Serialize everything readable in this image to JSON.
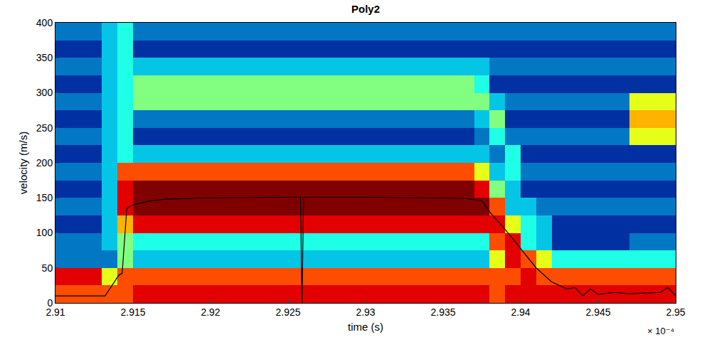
{
  "chart_data": {
    "type": "heatmap",
    "title": "Poly2",
    "x_label": "time (s)",
    "y_label": "velocity (m/s)",
    "annotations": [
      "× 10⁻⁴"
    ],
    "xlim": [
      2.91,
      2.95
    ],
    "xticks": [
      2.91,
      2.915,
      2.92,
      2.925,
      2.93,
      2.935,
      2.94,
      2.945,
      2.95
    ],
    "ylim": [
      0,
      400
    ],
    "yticks": [
      0,
      50,
      100,
      150,
      200,
      250,
      300,
      350,
      400
    ],
    "color_range": [
      0,
      10
    ],
    "x": [
      2.9105,
      2.9115,
      2.9125,
      2.9135,
      2.9145,
      2.9155,
      2.9165,
      2.9175,
      2.9185,
      2.9195,
      2.9205,
      2.9215,
      2.9225,
      2.9235,
      2.9245,
      2.9255,
      2.9265,
      2.9275,
      2.9285,
      2.9295,
      2.9305,
      2.9315,
      2.9325,
      2.9335,
      2.9345,
      2.9355,
      2.9365,
      2.9375,
      2.9385,
      2.9395,
      2.9405,
      2.9415,
      2.9425,
      2.9435,
      2.9445,
      2.9455,
      2.9465,
      2.9475,
      2.9485,
      2.9495
    ],
    "y": [
      12.5,
      37.5,
      62.5,
      87.5,
      112.5,
      137.5,
      162.5,
      187.5,
      212.5,
      237.5,
      262.5,
      287.5,
      312.5,
      337.5,
      362.5,
      387.5
    ],
    "z": [
      [
        8,
        8,
        8,
        8,
        8,
        9,
        9,
        9,
        9,
        9,
        9,
        9,
        9,
        9,
        9,
        9,
        9,
        9,
        9,
        9,
        9,
        9,
        9,
        9,
        9,
        9,
        9,
        9,
        8,
        9,
        9,
        9,
        9,
        9,
        9,
        9,
        9,
        9,
        9,
        9
      ],
      [
        9,
        9,
        9,
        6,
        8,
        8,
        8,
        8,
        8,
        8,
        8,
        8,
        8,
        8,
        8,
        8,
        8,
        8,
        8,
        8,
        8,
        8,
        8,
        8,
        8,
        8,
        8,
        8,
        8,
        8,
        9,
        8,
        8,
        8,
        8,
        8,
        8,
        8,
        8,
        8
      ],
      [
        2,
        2,
        2,
        2,
        5,
        3,
        3,
        3,
        3,
        3,
        3,
        3,
        3,
        3,
        3,
        3,
        3,
        3,
        3,
        3,
        3,
        3,
        3,
        3,
        3,
        3,
        3,
        3,
        6,
        9,
        8,
        6,
        4,
        4,
        4,
        4,
        4,
        4,
        4,
        4
      ],
      [
        2,
        2,
        2,
        3,
        5,
        4,
        4,
        4,
        4,
        4,
        4,
        4,
        4,
        4,
        4,
        4,
        4,
        4,
        4,
        4,
        4,
        4,
        4,
        4,
        4,
        4,
        4,
        4,
        8,
        9,
        4,
        3,
        1,
        1,
        1,
        1,
        1,
        2,
        2,
        2
      ],
      [
        1,
        1,
        1,
        3,
        7,
        9,
        9,
        9,
        9,
        9,
        9,
        9,
        9,
        9,
        9,
        9,
        9,
        9,
        9,
        9,
        9,
        9,
        9,
        9,
        9,
        9,
        9,
        9,
        9,
        6,
        4,
        3,
        1,
        1,
        1,
        1,
        1,
        1,
        1,
        1
      ],
      [
        2,
        2,
        2,
        3,
        9,
        10,
        10,
        10,
        10,
        10,
        10,
        10,
        10,
        10,
        10,
        10,
        10,
        10,
        10,
        10,
        10,
        10,
        10,
        10,
        10,
        10,
        10,
        10,
        8,
        3,
        3,
        2,
        2,
        2,
        2,
        2,
        2,
        2,
        2,
        2
      ],
      [
        1,
        1,
        1,
        3,
        9,
        10,
        10,
        10,
        10,
        10,
        10,
        10,
        10,
        10,
        10,
        10,
        10,
        10,
        10,
        10,
        10,
        10,
        10,
        10,
        10,
        10,
        10,
        9,
        5,
        3,
        1,
        1,
        1,
        1,
        1,
        1,
        1,
        1,
        1,
        1
      ],
      [
        2,
        2,
        2,
        3,
        8,
        8,
        8,
        8,
        8,
        8,
        8,
        8,
        8,
        8,
        8,
        8,
        8,
        8,
        8,
        8,
        8,
        8,
        8,
        8,
        8,
        8,
        8,
        6,
        3,
        4,
        2,
        2,
        2,
        2,
        2,
        2,
        2,
        2,
        2,
        2
      ],
      [
        1,
        1,
        1,
        3,
        4,
        3,
        3,
        3,
        3,
        3,
        3,
        3,
        3,
        3,
        3,
        3,
        3,
        3,
        3,
        3,
        3,
        3,
        3,
        3,
        3,
        3,
        3,
        3,
        2,
        4,
        1,
        1,
        1,
        1,
        1,
        1,
        1,
        1,
        1,
        1
      ],
      [
        2,
        2,
        2,
        3,
        4,
        1,
        1,
        1,
        1,
        1,
        1,
        1,
        1,
        1,
        1,
        1,
        1,
        1,
        1,
        1,
        1,
        1,
        1,
        1,
        1,
        1,
        1,
        2,
        4,
        2,
        2,
        2,
        2,
        2,
        2,
        2,
        2,
        6,
        6,
        6
      ],
      [
        1,
        1,
        1,
        3,
        4,
        2,
        2,
        2,
        2,
        2,
        2,
        2,
        2,
        2,
        2,
        2,
        2,
        2,
        2,
        2,
        2,
        2,
        2,
        2,
        2,
        2,
        2,
        3,
        5,
        1,
        1,
        1,
        1,
        1,
        1,
        1,
        1,
        7,
        7,
        7
      ],
      [
        2,
        2,
        2,
        3,
        4,
        5,
        5,
        5,
        5,
        5,
        5,
        5,
        5,
        5,
        5,
        5,
        5,
        5,
        5,
        5,
        5,
        5,
        5,
        5,
        5,
        5,
        5,
        5,
        3,
        2,
        2,
        2,
        2,
        2,
        2,
        2,
        2,
        6,
        6,
        6
      ],
      [
        1,
        1,
        1,
        3,
        4,
        5,
        5,
        5,
        5,
        5,
        5,
        5,
        5,
        5,
        5,
        5,
        5,
        5,
        5,
        5,
        5,
        5,
        5,
        5,
        5,
        5,
        5,
        4,
        1,
        1,
        1,
        1,
        1,
        1,
        1,
        1,
        1,
        1,
        1,
        1
      ],
      [
        2,
        2,
        2,
        3,
        4,
        3,
        3,
        3,
        3,
        3,
        3,
        3,
        3,
        3,
        3,
        3,
        3,
        3,
        3,
        3,
        3,
        3,
        3,
        3,
        3,
        3,
        3,
        3,
        2,
        2,
        2,
        2,
        2,
        2,
        2,
        2,
        2,
        2,
        2,
        2
      ],
      [
        1,
        1,
        1,
        3,
        4,
        1,
        1,
        1,
        1,
        1,
        1,
        1,
        1,
        1,
        1,
        1,
        1,
        1,
        1,
        1,
        1,
        1,
        1,
        1,
        1,
        1,
        1,
        1,
        1,
        1,
        1,
        1,
        1,
        1,
        1,
        1,
        1,
        1,
        1,
        1
      ],
      [
        2,
        2,
        2,
        3,
        4,
        2,
        2,
        2,
        2,
        2,
        2,
        2,
        2,
        2,
        2,
        2,
        2,
        2,
        2,
        2,
        2,
        2,
        2,
        2,
        2,
        2,
        2,
        2,
        2,
        2,
        2,
        2,
        2,
        2,
        2,
        2,
        2,
        2,
        2,
        2
      ]
    ],
    "line": {
      "type": "line",
      "color": "#000000",
      "x": [
        2.91,
        2.9125,
        2.9132,
        2.9138,
        2.9141,
        2.9143,
        2.9146,
        2.915,
        2.916,
        2.917,
        2.92,
        2.925,
        2.9258,
        2.9259,
        2.926,
        2.93,
        2.9365,
        2.9375,
        2.938,
        2.939,
        2.94,
        2.941,
        2.942,
        2.9425,
        2.943,
        2.9435,
        2.944,
        2.9445,
        2.945,
        2.946,
        2.947,
        2.948,
        2.949,
        2.9495,
        2.95
      ],
      "values": [
        10,
        10,
        10,
        30,
        40,
        42,
        135,
        140,
        145,
        148,
        150,
        151,
        151,
        0,
        151,
        151,
        149,
        146,
        130,
        105,
        78,
        50,
        30,
        25,
        20,
        22,
        10,
        20,
        12,
        15,
        13,
        14,
        15,
        22,
        10
      ]
    }
  }
}
